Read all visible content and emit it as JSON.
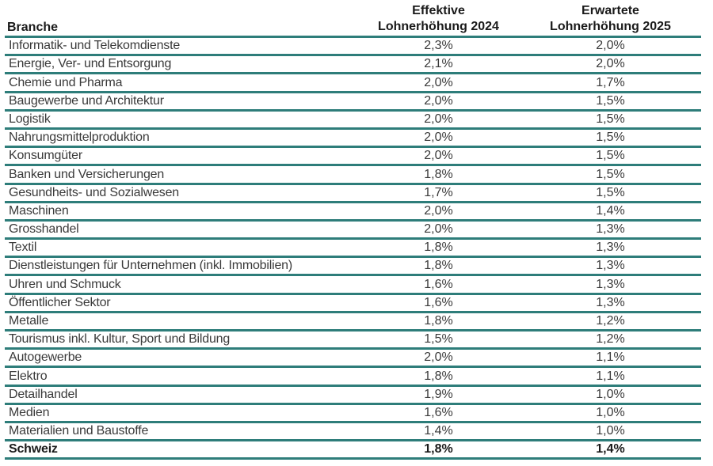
{
  "table": {
    "headers": {
      "branche": "Branche",
      "col2_line1": "Effektive",
      "col2_line2": "Lohnerhöhung 2024",
      "col3_line1": "Erwartete",
      "col3_line2": "Lohnerhöhung 2025"
    },
    "rows": [
      {
        "branche": "Informatik- und Telekomdienste",
        "y2024": "2,3%",
        "y2025": "2,0%"
      },
      {
        "branche": "Energie, Ver- und Entsorgung",
        "y2024": "2,1%",
        "y2025": "2,0%"
      },
      {
        "branche": "Chemie und Pharma",
        "y2024": "2,0%",
        "y2025": "1,7%"
      },
      {
        "branche": "Baugewerbe und Architektur",
        "y2024": "2,0%",
        "y2025": "1,5%"
      },
      {
        "branche": "Logistik",
        "y2024": "2,0%",
        "y2025": "1,5%"
      },
      {
        "branche": "Nahrungsmittelproduktion",
        "y2024": "2,0%",
        "y2025": "1,5%"
      },
      {
        "branche": "Konsumgüter",
        "y2024": "2,0%",
        "y2025": "1,5%"
      },
      {
        "branche": "Banken und Versicherungen",
        "y2024": "1,8%",
        "y2025": "1,5%"
      },
      {
        "branche": "Gesundheits- und Sozialwesen",
        "y2024": "1,7%",
        "y2025": "1,5%"
      },
      {
        "branche": "Maschinen",
        "y2024": "2,0%",
        "y2025": "1,4%"
      },
      {
        "branche": "Grosshandel",
        "y2024": "2,0%",
        "y2025": "1,3%"
      },
      {
        "branche": "Textil",
        "y2024": "1,8%",
        "y2025": "1,3%"
      },
      {
        "branche": "Dienstleistungen für Unternehmen (inkl. Immobilien)",
        "y2024": "1,8%",
        "y2025": "1,3%"
      },
      {
        "branche": "Uhren und Schmuck",
        "y2024": "1,6%",
        "y2025": "1,3%"
      },
      {
        "branche": "Öffentlicher Sektor",
        "y2024": "1,6%",
        "y2025": "1,3%"
      },
      {
        "branche": "Metalle",
        "y2024": "1,8%",
        "y2025": "1,2%"
      },
      {
        "branche": "Tourismus inkl. Kultur, Sport und Bildung",
        "y2024": "1,5%",
        "y2025": "1,2%"
      },
      {
        "branche": "Autogewerbe",
        "y2024": "2,0%",
        "y2025": "1,1%"
      },
      {
        "branche": "Elektro",
        "y2024": "1,8%",
        "y2025": "1,1%"
      },
      {
        "branche": "Detailhandel",
        "y2024": "1,9%",
        "y2025": "1,0%"
      },
      {
        "branche": "Medien",
        "y2024": "1,6%",
        "y2025": "1,0%"
      },
      {
        "branche": "Materialien und Baustoffe",
        "y2024": "1,4%",
        "y2025": "1,0%"
      }
    ],
    "total": {
      "branche": "Schweiz",
      "y2024": "1,8%",
      "y2025": "1,4%"
    }
  },
  "colors": {
    "rule": "#2e7d7a",
    "text": "#3a3a3a"
  }
}
